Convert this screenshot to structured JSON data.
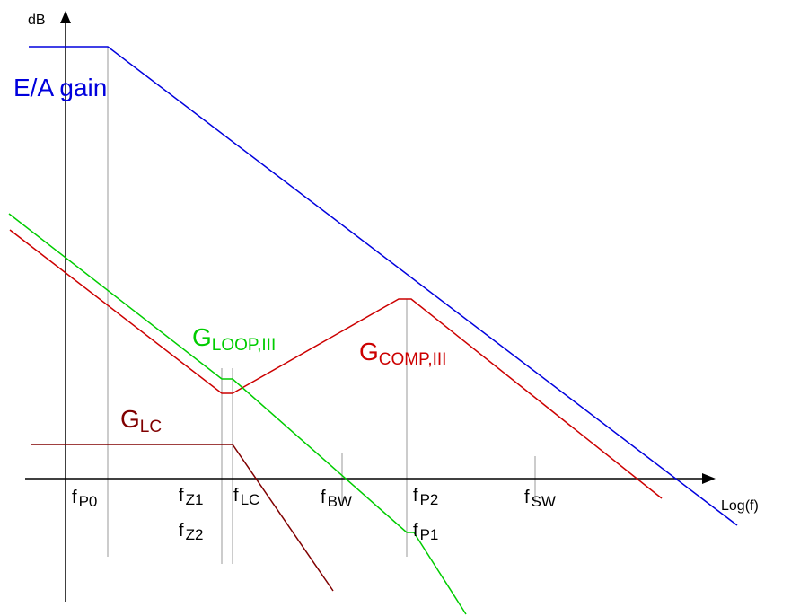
{
  "axes": {
    "y_label": "dB",
    "x_label": "Log(f)"
  },
  "frequencies": [
    {
      "id": "fp0",
      "main": "f",
      "sub": "P0"
    },
    {
      "id": "fz1",
      "main": "f",
      "sub": "Z1"
    },
    {
      "id": "fz2",
      "main": "f",
      "sub": "Z2"
    },
    {
      "id": "flc",
      "main": "f",
      "sub": "LC"
    },
    {
      "id": "fbw",
      "main": "f",
      "sub": "BW"
    },
    {
      "id": "fp2",
      "main": "f",
      "sub": "P2"
    },
    {
      "id": "fp1",
      "main": "f",
      "sub": "P1"
    },
    {
      "id": "fsw",
      "main": "f",
      "sub": "SW"
    }
  ],
  "curves": {
    "ea_gain": {
      "label": "E/A gain",
      "color": "#0000dd"
    },
    "g_loop": {
      "main": "G",
      "sub": "LOOP,III",
      "color": "#00cc00"
    },
    "g_comp": {
      "main": "G",
      "sub": "COMP,III",
      "color": "#cc0000"
    },
    "g_lc": {
      "main": "G",
      "sub": "LC",
      "color": "#800000"
    }
  },
  "colors": {
    "axis": "#000000",
    "marker": "#999999"
  }
}
